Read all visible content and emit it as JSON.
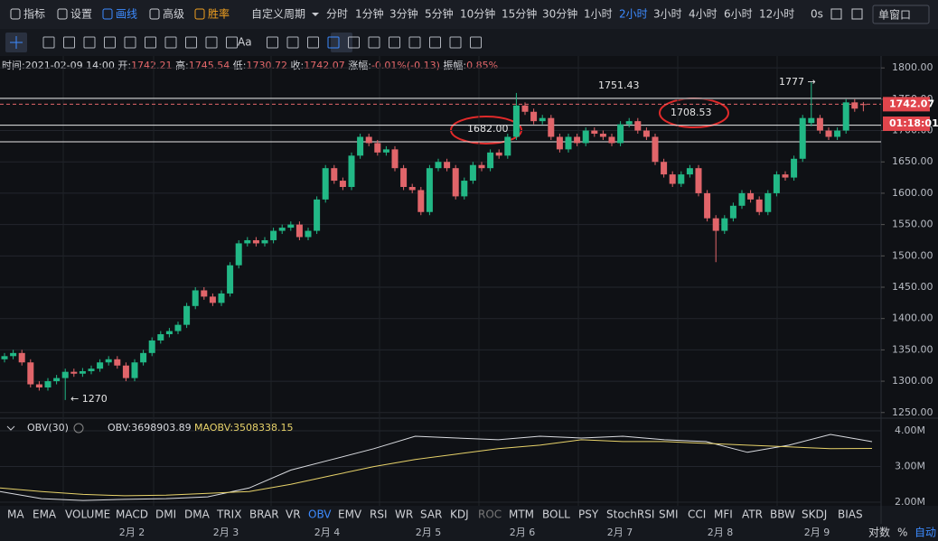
{
  "toolbar": {
    "left": [
      "指标",
      "设置",
      "画线",
      "高级",
      "胜率"
    ],
    "period_label": "自定义周期",
    "periods": [
      "分时",
      "1分钟",
      "3分钟",
      "5分钟",
      "10分钟",
      "15分钟",
      "30分钟",
      "1小时",
      "2小时",
      "3小时",
      "4小时",
      "6小时",
      "12小时"
    ],
    "active_period": "2小时",
    "timer": "0s",
    "window": "单窗口",
    "text_tool": "Aa"
  },
  "info": {
    "time": "时间:2021-02-09 14:00",
    "open_label": "开:",
    "open": "1742.21",
    "high_label": "高:",
    "high": "1745.54",
    "low_label": "低:",
    "low": "1730.72",
    "close_label": "收:",
    "close": "1742.07",
    "change_label": "涨幅:",
    "change": "-0.01%(-0.13)",
    "amp_label": "振幅:",
    "amp": "0.85%"
  },
  "chart_data": [
    {
      "type": "candlestick",
      "open": [
        1335,
        1340,
        1345,
        1330,
        1295,
        1290,
        1300,
        1305,
        1315,
        1312,
        1316,
        1320,
        1330,
        1335,
        1325,
        1305,
        1330,
        1345,
        1365,
        1375,
        1380,
        1390,
        1420,
        1445,
        1435,
        1425,
        1440,
        1485,
        1520,
        1525,
        1520,
        1525,
        1540,
        1545,
        1550,
        1530,
        1540,
        1590,
        1640,
        1620,
        1610,
        1660,
        1690,
        1680,
        1665,
        1670,
        1640,
        1610,
        1605,
        1570,
        1640,
        1650,
        1640,
        1595,
        1620,
        1645,
        1640,
        1665,
        1660,
        1690,
        1740,
        1730,
        1715,
        1720,
        1690,
        1670,
        1690,
        1680,
        1700,
        1695,
        1690,
        1680,
        1710,
        1715,
        1700,
        1690,
        1650,
        1630,
        1615,
        1630,
        1640,
        1600,
        1560,
        1540,
        1560,
        1580,
        1600,
        1590,
        1570,
        1600,
        1630,
        1625,
        1655,
        1712,
        1720,
        1700,
        1690,
        1700,
        1745,
        1742.21
      ],
      "high": [
        1345,
        1350,
        1350,
        1335,
        1300,
        1305,
        1310,
        1320,
        1320,
        1321,
        1325,
        1335,
        1340,
        1340,
        1330,
        1335,
        1350,
        1370,
        1380,
        1385,
        1395,
        1425,
        1450,
        1450,
        1440,
        1445,
        1490,
        1525,
        1530,
        1530,
        1530,
        1545,
        1550,
        1555,
        1555,
        1545,
        1595,
        1645,
        1645,
        1625,
        1665,
        1695,
        1695,
        1685,
        1675,
        1675,
        1645,
        1615,
        1610,
        1645,
        1655,
        1655,
        1645,
        1625,
        1650,
        1650,
        1670,
        1670,
        1695,
        1760,
        1745,
        1735,
        1725,
        1725,
        1695,
        1695,
        1695,
        1705,
        1705,
        1700,
        1695,
        1715,
        1720,
        1720,
        1705,
        1695,
        1655,
        1635,
        1635,
        1645,
        1645,
        1605,
        1565,
        1565,
        1585,
        1605,
        1605,
        1595,
        1605,
        1635,
        1635,
        1660,
        1725,
        1777,
        1725,
        1705,
        1705,
        1750,
        1750,
        1745.54
      ],
      "low": [
        1330,
        1335,
        1325,
        1290,
        1285,
        1285,
        1295,
        1270,
        1307,
        1307,
        1311,
        1315,
        1325,
        1320,
        1300,
        1300,
        1325,
        1340,
        1360,
        1370,
        1375,
        1385,
        1415,
        1430,
        1420,
        1420,
        1435,
        1480,
        1515,
        1515,
        1515,
        1520,
        1535,
        1540,
        1525,
        1525,
        1535,
        1585,
        1615,
        1605,
        1605,
        1655,
        1675,
        1660,
        1660,
        1635,
        1605,
        1600,
        1565,
        1565,
        1635,
        1635,
        1590,
        1590,
        1615,
        1635,
        1635,
        1655,
        1655,
        1685,
        1725,
        1710,
        1710,
        1685,
        1665,
        1665,
        1675,
        1675,
        1690,
        1685,
        1675,
        1675,
        1705,
        1695,
        1685,
        1645,
        1625,
        1610,
        1610,
        1625,
        1595,
        1555,
        1490,
        1535,
        1555,
        1575,
        1585,
        1565,
        1565,
        1595,
        1620,
        1620,
        1650,
        1707,
        1695,
        1685,
        1685,
        1695,
        1730,
        1730.72
      ],
      "close": [
        1340,
        1345,
        1330,
        1295,
        1290,
        1300,
        1305,
        1315,
        1312,
        1316,
        1320,
        1330,
        1335,
        1325,
        1305,
        1330,
        1345,
        1365,
        1375,
        1380,
        1390,
        1420,
        1445,
        1435,
        1425,
        1440,
        1485,
        1520,
        1525,
        1520,
        1525,
        1540,
        1545,
        1550,
        1530,
        1540,
        1590,
        1640,
        1620,
        1610,
        1660,
        1690,
        1680,
        1665,
        1670,
        1640,
        1610,
        1605,
        1570,
        1640,
        1650,
        1640,
        1595,
        1620,
        1645,
        1640,
        1665,
        1660,
        1690,
        1740,
        1730,
        1715,
        1720,
        1690,
        1670,
        1690,
        1680,
        1700,
        1695,
        1690,
        1680,
        1710,
        1715,
        1700,
        1690,
        1650,
        1630,
        1615,
        1630,
        1640,
        1600,
        1560,
        1540,
        1560,
        1580,
        1600,
        1590,
        1570,
        1600,
        1630,
        1625,
        1655,
        1720,
        1720,
        1700,
        1690,
        1700,
        1745,
        1735,
        1742.07
      ],
      "up_color": "#22b886",
      "down_color": "#e1656a",
      "ylim": [
        1241,
        1819
      ],
      "yticks": [
        {
          "value": 1800,
          "label": "1800.00"
        },
        {
          "value": 1750,
          "label": "1750.00"
        },
        {
          "value": 1700,
          "label": "1700.00"
        },
        {
          "value": 1650,
          "label": "1650.00"
        },
        {
          "value": 1600,
          "label": "1600.00"
        },
        {
          "value": 1550,
          "label": "1550.00"
        },
        {
          "value": 1500,
          "label": "1500.00"
        },
        {
          "value": 1450,
          "label": "1450.00"
        },
        {
          "value": 1400,
          "label": "1400.00"
        },
        {
          "value": 1350,
          "label": "1350.00"
        },
        {
          "value": 1300,
          "label": "1300.00"
        },
        {
          "value": 1250,
          "label": "1250.00"
        }
      ],
      "grid": true,
      "levels": [
        1751.43,
        1708.53,
        1682
      ],
      "annotations": [
        "1751.43",
        "1708.53",
        "1682.00",
        "1777 →",
        "← 1270"
      ],
      "last_price_label": "1742.07",
      "countdown": "01:18:01"
    },
    {
      "type": "line",
      "title": "OBV(30)",
      "series": [
        {
          "name": "OBV:3698903.89",
          "color": "#d9dbe0",
          "values": [
            2300000,
            2100000,
            2050000,
            2080000,
            2100000,
            2150000,
            2400000,
            2900000,
            3200000,
            3500000,
            3850000,
            3800000,
            3750000,
            3850000,
            3800000,
            3850000,
            3750000,
            3700000,
            3400000,
            3600000,
            3900000,
            3698903.89
          ]
        },
        {
          "name": "MAOBV:3508338.15",
          "color": "#e8d36a",
          "values": [
            2400000,
            2300000,
            2220000,
            2180000,
            2200000,
            2250000,
            2300000,
            2500000,
            2750000,
            3000000,
            3200000,
            3350000,
            3500000,
            3600000,
            3750000,
            3700000,
            3700000,
            3650000,
            3600000,
            3550000,
            3500000,
            3508338.15
          ]
        }
      ],
      "ylim": [
        1900000,
        4280000
      ],
      "yticks": [
        {
          "value": 2000000,
          "label": "2.00M"
        },
        {
          "value": 3000000,
          "label": "3.00M"
        },
        {
          "value": 4000000,
          "label": "4.00M"
        }
      ]
    }
  ],
  "indicators": [
    "MA",
    "EMA",
    "VOLUME",
    "MACD",
    "DMI",
    "DMA",
    "TRIX",
    "BRAR",
    "VR",
    "OBV",
    "EMV",
    "RSI",
    "WR",
    "SAR",
    "KDJ",
    "ROC",
    "MTM",
    "BOLL",
    "PSY",
    "StochRSI",
    "SMI",
    "CCI",
    "MFI",
    "ATR",
    "BBW",
    "SKDJ",
    "BIAS"
  ],
  "active_indicator": "OBV",
  "scale_options": [
    "对数",
    "%",
    "自动"
  ],
  "dates": [
    "2月 2",
    "2月 3",
    "2月 4",
    "2月 5",
    "2月 6",
    "2月 7",
    "2月 8",
    "2月 9"
  ]
}
